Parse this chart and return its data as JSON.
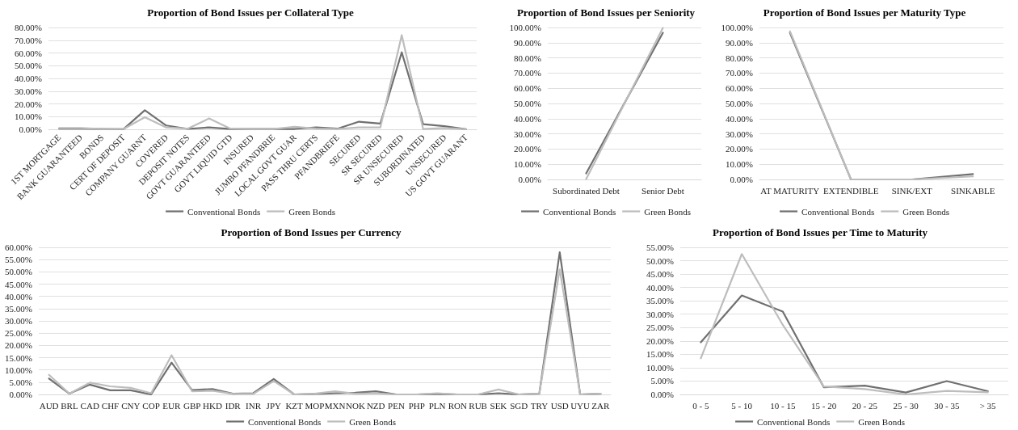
{
  "chart_data": [
    {
      "type": "line",
      "title": "Proportion of Bond Issues per Collateral Type",
      "categories": [
        "1ST MORTGAGE",
        "BANK GUARANTEED",
        "BONDS",
        "CERT OF DEPOSIT",
        "COMPANY GUARNT",
        "COVERED",
        "DEPOSIT NOTES",
        "GOVT GUARANTEED",
        "GOVT LIQUID GTD",
        "INSURED",
        "JUMBO PFANDBRIE",
        "LOCAL GOVT GUAR",
        "PASS THRU CERTS",
        "PFANDBRIEFE",
        "SECURED",
        "SR SECURED",
        "SR UNSECURED",
        "SUBORDINATED",
        "UNSECURED",
        "US GOVT GUARANT"
      ],
      "series": [
        {
          "name": "Conventional Bonds",
          "color": "#707070",
          "values": [
            0.5,
            0.5,
            0.2,
            0.1,
            15,
            3,
            0.3,
            1.5,
            0.2,
            0.2,
            0.2,
            0.3,
            1.5,
            0.5,
            6,
            4.5,
            60.5,
            4,
            2.5,
            0.1
          ]
        },
        {
          "name": "Green Bonds",
          "color": "#bdbdbd",
          "values": [
            1,
            1,
            0.2,
            0.2,
            9.5,
            1.5,
            0.5,
            8.5,
            0.5,
            0.2,
            0.2,
            2,
            0.5,
            0.3,
            1.5,
            1.5,
            74,
            0.2,
            1,
            0.1
          ]
        }
      ],
      "ylim": [
        0,
        80
      ],
      "yticks": [
        {
          "value": 0,
          "label": "0.00%"
        },
        {
          "value": 10,
          "label": "10.00%"
        },
        {
          "value": 20,
          "label": "20.00%"
        },
        {
          "value": 30,
          "label": "30.00%"
        },
        {
          "value": 40,
          "label": "40.00%"
        },
        {
          "value": 50,
          "label": "50.00%"
        },
        {
          "value": 60,
          "label": "60.00%"
        },
        {
          "value": 70,
          "label": "70.00%"
        },
        {
          "value": 80,
          "label": "80.00%"
        }
      ],
      "grid": "y",
      "legend": "bottom",
      "marker": "none"
    },
    {
      "type": "line",
      "title": "Proportion of Bond Issues per Seniority",
      "categories": [
        "Subordinated Debt",
        "Senior Debt"
      ],
      "series": [
        {
          "name": "Conventional Bonds",
          "color": "#707070",
          "values": [
            4,
            96.5
          ]
        },
        {
          "name": "Green Bonds",
          "color": "#bdbdbd",
          "values": [
            0.3,
            99.7
          ]
        }
      ],
      "ylim": [
        0,
        100
      ],
      "yticks": [
        {
          "value": 0,
          "label": "0.00%"
        },
        {
          "value": 10,
          "label": "10.00%"
        },
        {
          "value": 20,
          "label": "20.00%"
        },
        {
          "value": 30,
          "label": "30.00%"
        },
        {
          "value": 40,
          "label": "40.00%"
        },
        {
          "value": 50,
          "label": "50.00%"
        },
        {
          "value": 60,
          "label": "60.00%"
        },
        {
          "value": 70,
          "label": "70.00%"
        },
        {
          "value": 80,
          "label": "80.00%"
        },
        {
          "value": 90,
          "label": "90.00%"
        },
        {
          "value": 100,
          "label": "100.00%"
        }
      ],
      "grid": "y",
      "legend": "bottom",
      "marker": "none"
    },
    {
      "type": "line",
      "title": "Proportion of Bond Issues per Maturity Type",
      "categories": [
        "AT MATURITY",
        "EXTENDIBLE",
        "SINK/EXT",
        "SINKABLE"
      ],
      "series": [
        {
          "name": "Conventional Bonds",
          "color": "#707070",
          "values": [
            96.5,
            0,
            0,
            3.5
          ]
        },
        {
          "name": "Green Bonds",
          "color": "#bdbdbd",
          "values": [
            97.5,
            0,
            0,
            2
          ]
        }
      ],
      "ylim": [
        0,
        100
      ],
      "yticks": [
        {
          "value": 0,
          "label": "0.00%"
        },
        {
          "value": 10,
          "label": "10.00%"
        },
        {
          "value": 20,
          "label": "20.00%"
        },
        {
          "value": 30,
          "label": "30.00%"
        },
        {
          "value": 40,
          "label": "40.00%"
        },
        {
          "value": 50,
          "label": "50.00%"
        },
        {
          "value": 60,
          "label": "60.00%"
        },
        {
          "value": 70,
          "label": "70.00%"
        },
        {
          "value": 80,
          "label": "80.00%"
        },
        {
          "value": 90,
          "label": "90.00%"
        },
        {
          "value": 100,
          "label": "100.00%"
        }
      ],
      "grid": "y",
      "legend": "bottom",
      "marker": "none"
    },
    {
      "type": "line",
      "title": "Proportion of Bond Issues per Currency",
      "categories": [
        "AUD",
        "BRL",
        "CAD",
        "CHF",
        "CNY",
        "COP",
        "EUR",
        "GBP",
        "HKD",
        "IDR",
        "INR",
        "JPY",
        "KZT",
        "MOP",
        "MXN",
        "NOK",
        "NZD",
        "PEN",
        "PHP",
        "PLN",
        "RON",
        "RUB",
        "SEK",
        "SGD",
        "TRY",
        "USD",
        "UYU",
        "ZAR"
      ],
      "series": [
        {
          "name": "Conventional Bonds",
          "color": "#707070",
          "values": [
            6.5,
            0.3,
            4,
            1.7,
            1.7,
            0,
            13,
            1.8,
            2.2,
            0.3,
            0.5,
            6.3,
            0,
            0.2,
            0.5,
            0.7,
            1.3,
            0,
            0,
            0.2,
            0,
            0,
            0.5,
            0,
            0.3,
            58,
            0,
            0.3
          ]
        },
        {
          "name": "Green Bonds",
          "color": "#bdbdbd",
          "values": [
            8,
            0.3,
            4.8,
            3.3,
            2.7,
            0.5,
            16,
            1.3,
            1.5,
            0.2,
            0.2,
            5.5,
            0,
            0.3,
            1.3,
            0.3,
            0.5,
            0,
            0,
            0.5,
            0,
            0,
            2,
            0,
            0.3,
            51,
            0,
            0.3
          ]
        }
      ],
      "ylim": [
        0,
        60
      ],
      "yticks": [
        {
          "value": 0,
          "label": "0.00%"
        },
        {
          "value": 5,
          "label": "5.00%"
        },
        {
          "value": 10,
          "label": "10.00%"
        },
        {
          "value": 15,
          "label": "15.00%"
        },
        {
          "value": 20,
          "label": "20.00%"
        },
        {
          "value": 25,
          "label": "25.00%"
        },
        {
          "value": 30,
          "label": "30.00%"
        },
        {
          "value": 35,
          "label": "35.00%"
        },
        {
          "value": 40,
          "label": "40.00%"
        },
        {
          "value": 45,
          "label": "45.00%"
        },
        {
          "value": 50,
          "label": "50.00%"
        },
        {
          "value": 55,
          "label": "55.00%"
        },
        {
          "value": 60,
          "label": "60.00%"
        }
      ],
      "grid": "y",
      "legend": "bottom",
      "marker": "none"
    },
    {
      "type": "line",
      "title": "Proportion of Bond Issues per Time to Maturity",
      "categories": [
        "0 - 5",
        "5 - 10",
        "10 - 15",
        "15 - 20",
        "20 - 25",
        "25 - 30",
        "30 - 35",
        "> 35"
      ],
      "series": [
        {
          "name": "Conventional Bonds",
          "color": "#707070",
          "values": [
            19.5,
            37,
            31,
            2.7,
            3.3,
            0.7,
            5,
            1.2
          ]
        },
        {
          "name": "Green Bonds",
          "color": "#bdbdbd",
          "values": [
            13.5,
            52.5,
            26,
            3,
            2,
            0,
            1.3,
            0.8
          ]
        }
      ],
      "ylim": [
        0,
        55
      ],
      "yticks": [
        {
          "value": 0,
          "label": "0.00%"
        },
        {
          "value": 5,
          "label": "5.00%"
        },
        {
          "value": 10,
          "label": "10.00%"
        },
        {
          "value": 15,
          "label": "15.00%"
        },
        {
          "value": 20,
          "label": "20.00%"
        },
        {
          "value": 25,
          "label": "25.00%"
        },
        {
          "value": 30,
          "label": "30.00%"
        },
        {
          "value": 35,
          "label": "35.00%"
        },
        {
          "value": 40,
          "label": "40.00%"
        },
        {
          "value": 45,
          "label": "45.00%"
        },
        {
          "value": 50,
          "label": "50.00%"
        },
        {
          "value": 55,
          "label": "55.00%"
        }
      ],
      "grid": "y",
      "legend": "bottom",
      "marker": "none"
    }
  ]
}
